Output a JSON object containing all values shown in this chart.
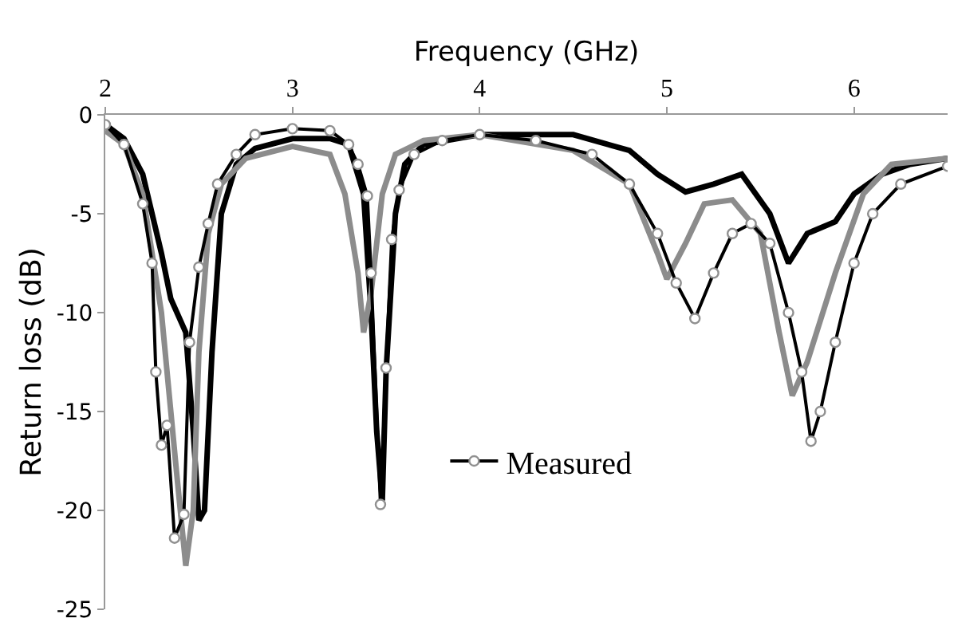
{
  "chart_data": {
    "type": "line",
    "xlabel": "Frequency (GHz)",
    "ylabel": "Return loss (dB)",
    "xlim": [
      2,
      6.5
    ],
    "xticks": [
      2,
      3,
      4,
      5,
      6
    ],
    "ylim": [
      -25,
      0
    ],
    "yticks": [
      -25,
      -20,
      -15,
      -10,
      -5,
      0
    ],
    "grid": false,
    "legend": "right",
    "line_style": "solid",
    "series": [
      {
        "color": "#000000",
        "marker": "none",
        "x": [
          2.0,
          2.1,
          2.2,
          2.3,
          2.35,
          2.43,
          2.47,
          2.5,
          2.53,
          2.57,
          2.62,
          2.7,
          2.8,
          3.0,
          3.2,
          3.3,
          3.38,
          3.42,
          3.45,
          3.48,
          3.5,
          3.55,
          3.6,
          3.7,
          4.0,
          4.5,
          4.8,
          4.95,
          5.1,
          5.25,
          5.4,
          5.55,
          5.65,
          5.75,
          5.9,
          6.0,
          6.15,
          6.3,
          6.5
        ],
        "values": [
          -0.5,
          -1.2,
          -3,
          -7,
          -9.3,
          -11,
          -16,
          -20.5,
          -20,
          -12,
          -5,
          -2.5,
          -1.7,
          -1.2,
          -1.2,
          -1.5,
          -4,
          -10,
          -16,
          -19.5,
          -13,
          -5,
          -2.5,
          -1.5,
          -1,
          -1,
          -1.8,
          -3,
          -3.9,
          -3.5,
          -3,
          -5,
          -7.5,
          -6,
          -5.4,
          -4,
          -3,
          -2.5,
          -2.2
        ]
      },
      {
        "color": "#8c8c8c",
        "marker": "none",
        "x": [
          2.0,
          2.1,
          2.2,
          2.3,
          2.38,
          2.43,
          2.47,
          2.5,
          2.55,
          2.62,
          2.75,
          3.0,
          3.2,
          3.28,
          3.35,
          3.38,
          3.42,
          3.48,
          3.55,
          3.7,
          4.0,
          4.5,
          4.8,
          4.95,
          5.0,
          5.1,
          5.2,
          5.35,
          5.5,
          5.6,
          5.67,
          5.75,
          5.9,
          6.05,
          6.2,
          6.5
        ],
        "values": [
          -0.8,
          -1.5,
          -4,
          -10,
          -18,
          -22.8,
          -20,
          -12,
          -6,
          -3.5,
          -2.2,
          -1.6,
          -2,
          -4,
          -8,
          -11,
          -9,
          -4,
          -2,
          -1.3,
          -1,
          -1.8,
          -3.5,
          -7,
          -8.3,
          -6.5,
          -4.5,
          -4.3,
          -6,
          -11,
          -14.2,
          -12.5,
          -8,
          -4,
          -2.5,
          -2.2
        ]
      },
      {
        "name": "Measured",
        "color": "#000000",
        "marker": "circle",
        "x": [
          2.0,
          2.1,
          2.2,
          2.25,
          2.27,
          2.3,
          2.33,
          2.37,
          2.42,
          2.45,
          2.5,
          2.55,
          2.6,
          2.7,
          2.8,
          3.0,
          3.2,
          3.3,
          3.35,
          3.4,
          3.42,
          3.47,
          3.5,
          3.53,
          3.57,
          3.65,
          3.8,
          4.0,
          4.3,
          4.6,
          4.8,
          4.95,
          5.05,
          5.15,
          5.25,
          5.35,
          5.45,
          5.55,
          5.65,
          5.72,
          5.77,
          5.82,
          5.9,
          6.0,
          6.1,
          6.25,
          6.5
        ],
        "values": [
          -0.5,
          -1.5,
          -4.5,
          -7.5,
          -13,
          -16.7,
          -15.7,
          -21.4,
          -20.2,
          -11.5,
          -7.7,
          -5.5,
          -3.5,
          -2,
          -1,
          -0.7,
          -0.8,
          -1.5,
          -2.5,
          -4.1,
          -8,
          -19.7,
          -12.8,
          -6.3,
          -3.8,
          -2,
          -1.3,
          -1,
          -1.3,
          -2,
          -3.5,
          -6,
          -8.5,
          -10.3,
          -8,
          -6,
          -5.5,
          -6.5,
          -10,
          -13,
          -16.5,
          -15,
          -11.5,
          -7.5,
          -5,
          -3.5,
          -2.6
        ]
      }
    ]
  }
}
